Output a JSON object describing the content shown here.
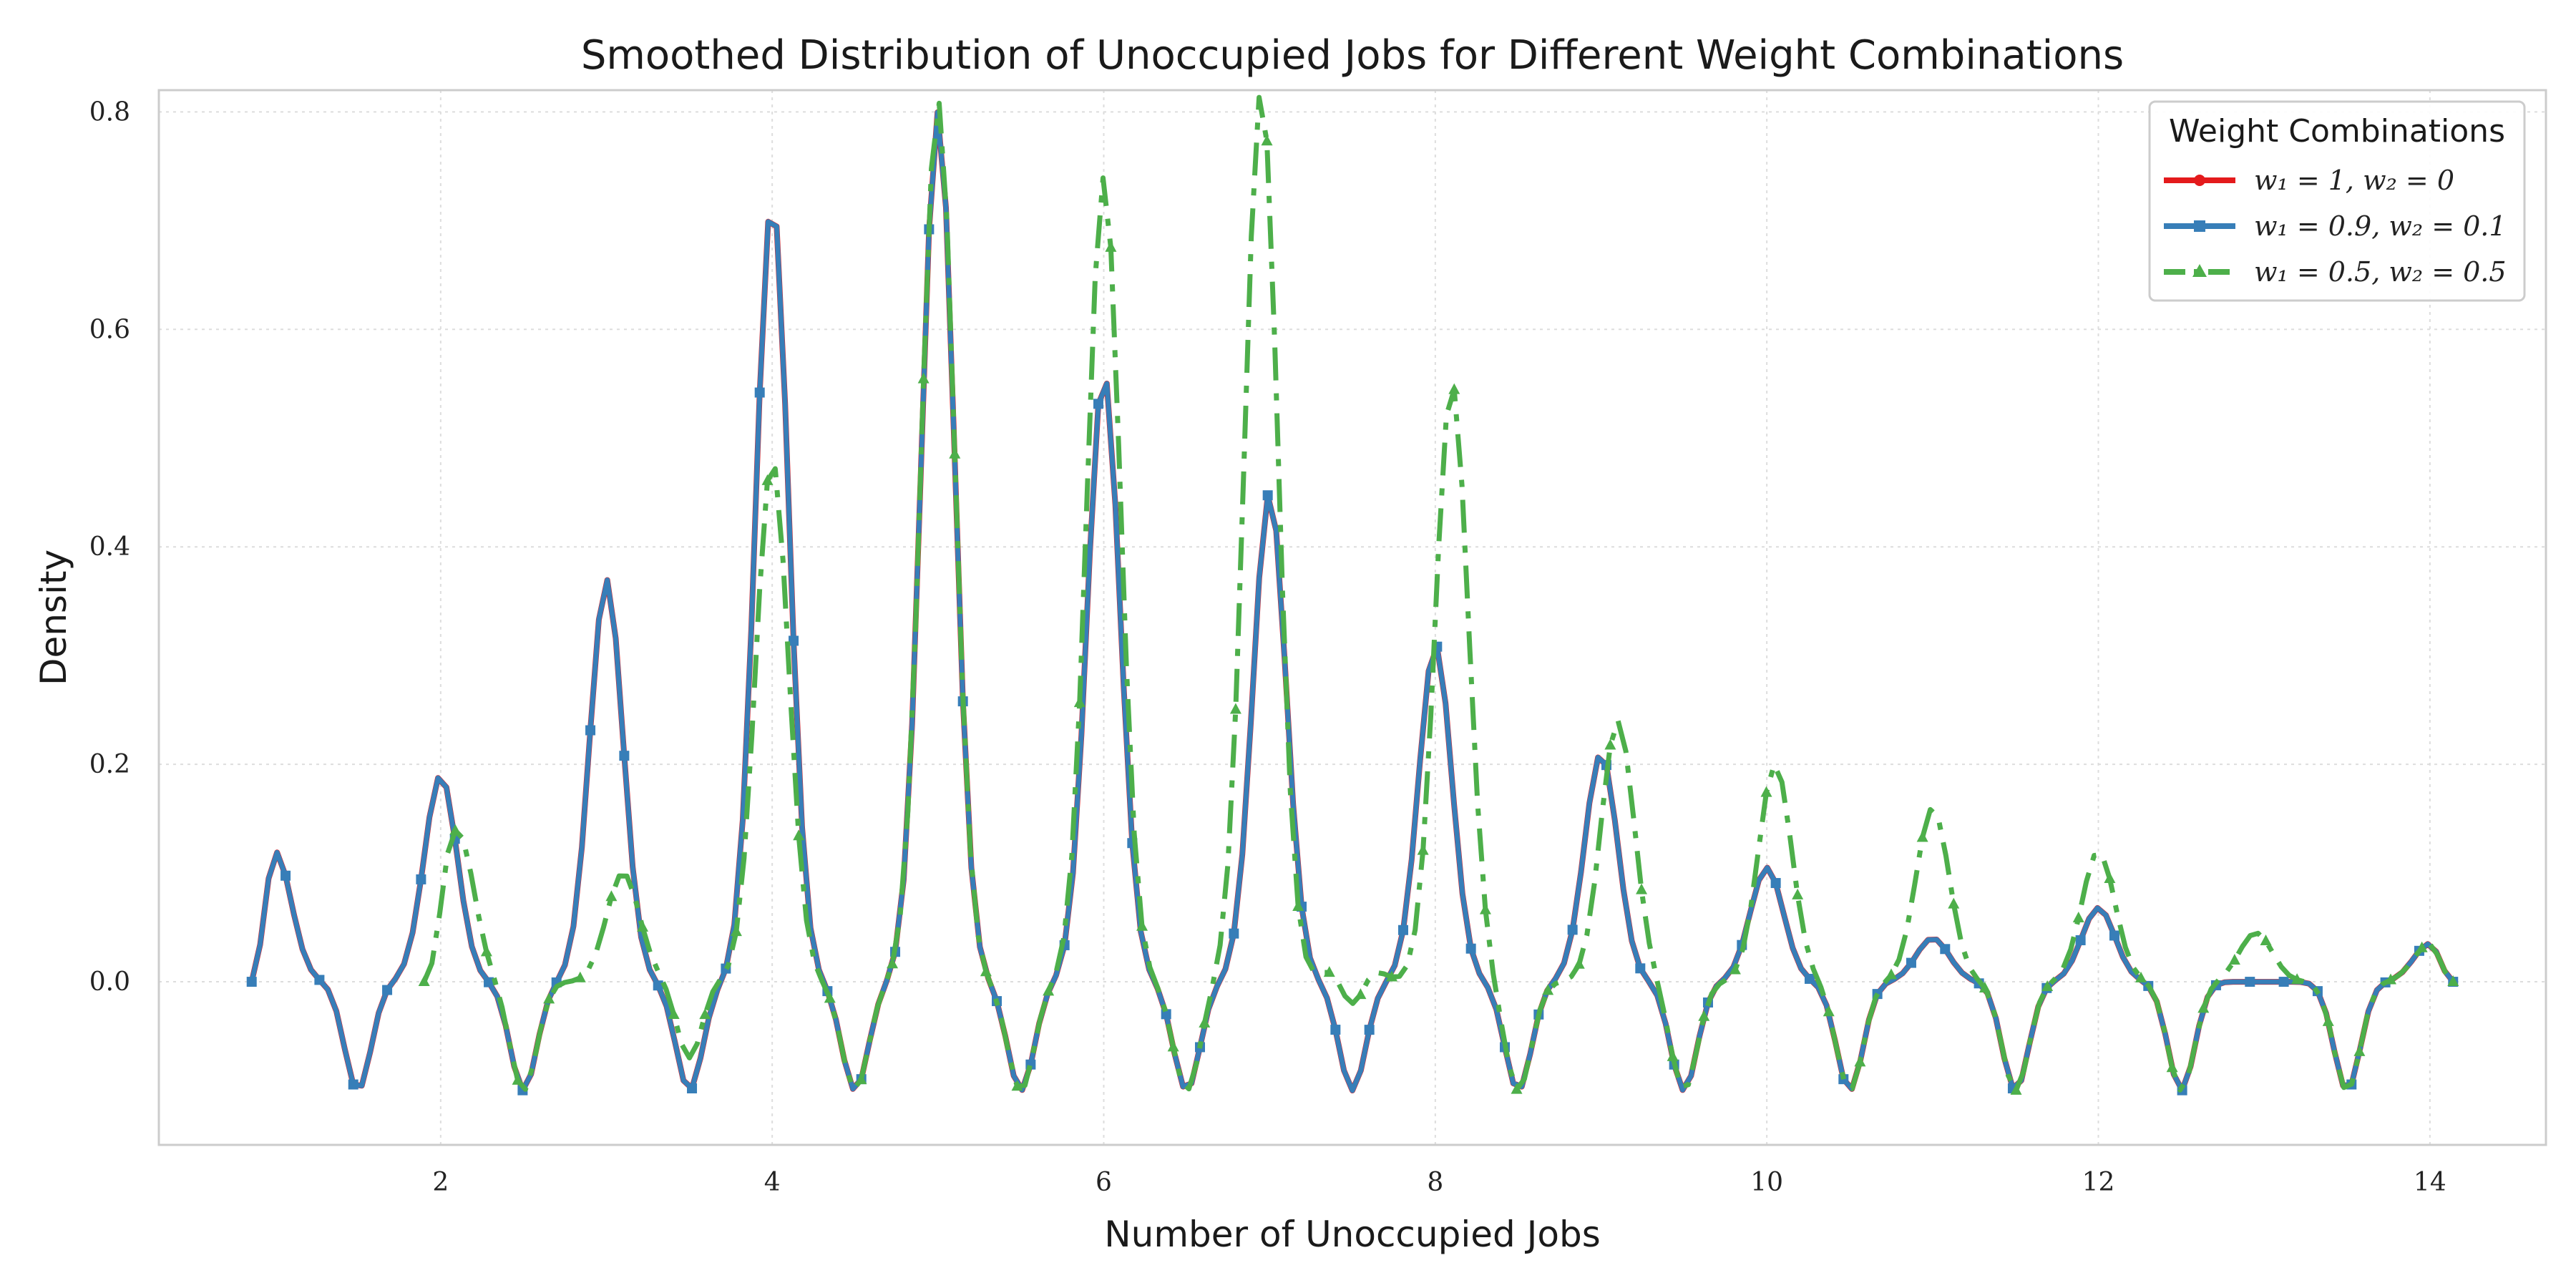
{
  "chart_data": {
    "type": "line",
    "title": "Smoothed Distribution of Unoccupied Jobs for Different Weight Combinations",
    "xlabel": "Number of Unoccupied Jobs",
    "ylabel": "Density",
    "xlim": [
      0.3,
      14.7
    ],
    "ylim": [
      -0.15,
      0.82
    ],
    "xticks": [
      "2",
      "4",
      "6",
      "8",
      "10",
      "12",
      "14"
    ],
    "yticks": [
      "0.0",
      "0.2",
      "0.4",
      "0.6",
      "0.8"
    ],
    "grid": true,
    "legend": {
      "title": "Weight Combinations",
      "placement": "top-right",
      "entries": [
        "w₁ = 1, w₂ = 0",
        "w₁ = 0.9, w₂ = 0.1",
        "w₁ = 0.5, w₂ = 0.5"
      ]
    },
    "series": [
      {
        "name": "w₁ = 1, w₂ = 0",
        "color": "#e41a1c",
        "marker": "circle",
        "linestyle": "solid",
        "kernel": {
          "x_start": 0.86,
          "x_end": 14.14,
          "sigma": 0.1,
          "ripple": 0.1,
          "ripple_period": 1.0,
          "peaks": [
            [
              1.0,
              0.12
            ],
            [
              2.0,
              0.19
            ],
            [
              3.0,
              0.37
            ],
            [
              4.0,
              0.72
            ],
            [
              5.0,
              0.8
            ],
            [
              6.0,
              0.56
            ],
            [
              7.0,
              0.45
            ],
            [
              8.0,
              0.31
            ],
            [
              9.0,
              0.21
            ],
            [
              10.0,
              0.105
            ],
            [
              11.0,
              0.04
            ],
            [
              12.0,
              0.068
            ],
            [
              13.0,
              0.0
            ],
            [
              14.0,
              0.035
            ]
          ]
        }
      },
      {
        "name": "w₁ = 0.9, w₂ = 0.1",
        "color": "#377eb8",
        "marker": "square",
        "linestyle": "solid",
        "kernel": {
          "x_start": 0.86,
          "x_end": 14.14,
          "sigma": 0.1,
          "ripple": 0.1,
          "ripple_period": 1.0,
          "peaks": [
            [
              1.0,
              0.12
            ],
            [
              2.0,
              0.19
            ],
            [
              3.0,
              0.37
            ],
            [
              4.0,
              0.72
            ],
            [
              5.0,
              0.8
            ],
            [
              6.0,
              0.56
            ],
            [
              7.0,
              0.45
            ],
            [
              8.0,
              0.31
            ],
            [
              9.0,
              0.21
            ],
            [
              10.0,
              0.105
            ],
            [
              11.0,
              0.04
            ],
            [
              12.0,
              0.068
            ],
            [
              13.0,
              0.0
            ],
            [
              14.0,
              0.035
            ]
          ]
        }
      },
      {
        "name": "w₁ = 0.5, w₂ = 0.5",
        "color": "#4daf4a",
        "marker": "triangle",
        "linestyle": "dashdot",
        "kernel": {
          "x_start": 1.9,
          "x_end": 14.14,
          "sigma": 0.1,
          "ripple": 0.1,
          "ripple_period": 1.0,
          "peaks": [
            [
              2.1,
              0.14
            ],
            [
              3.1,
              0.1
            ],
            [
              3.5,
              0.03
            ],
            [
              4.0,
              0.48
            ],
            [
              5.0,
              0.81
            ],
            [
              6.0,
              0.74
            ],
            [
              6.95,
              0.82
            ],
            [
              7.5,
              0.08
            ],
            [
              8.1,
              0.55
            ],
            [
              9.1,
              0.24
            ],
            [
              10.05,
              0.2
            ],
            [
              11.0,
              0.16
            ],
            [
              12.0,
              0.12
            ],
            [
              12.95,
              0.045
            ],
            [
              14.0,
              0.035
            ]
          ]
        }
      }
    ]
  }
}
